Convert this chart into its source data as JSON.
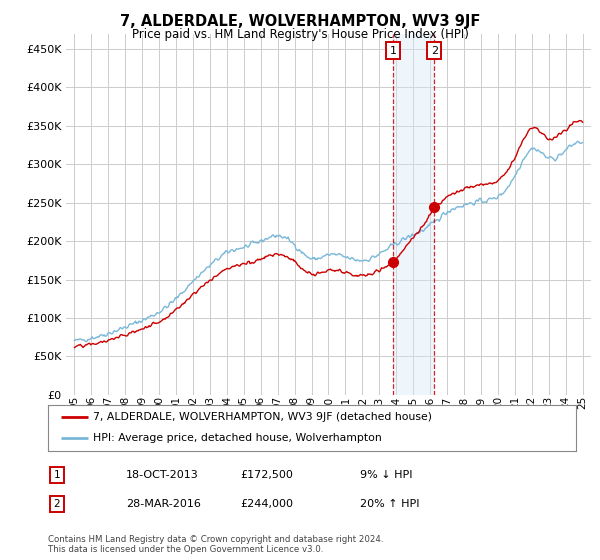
{
  "title": "7, ALDERDALE, WOLVERHAMPTON, WV3 9JF",
  "subtitle": "Price paid vs. HM Land Registry's House Price Index (HPI)",
  "legend_line1": "7, ALDERDALE, WOLVERHAMPTON, WV3 9JF (detached house)",
  "legend_line2": "HPI: Average price, detached house, Wolverhampton",
  "footnote": "Contains HM Land Registry data © Crown copyright and database right 2024.\nThis data is licensed under the Open Government Licence v3.0.",
  "transaction1_label": "1",
  "transaction1_date": "18-OCT-2013",
  "transaction1_price": "£172,500",
  "transaction1_hpi": "9% ↓ HPI",
  "transaction2_label": "2",
  "transaction2_date": "28-MAR-2016",
  "transaction2_price": "£244,000",
  "transaction2_hpi": "20% ↑ HPI",
  "hpi_color": "#7ab8d9",
  "price_color": "#cc0000",
  "background_color": "#ffffff",
  "grid_color": "#cccccc",
  "ylim": [
    0,
    470000
  ],
  "yticks": [
    0,
    50000,
    100000,
    150000,
    200000,
    250000,
    300000,
    350000,
    400000,
    450000
  ],
  "xlim_start": 1994.5,
  "xlim_end": 2025.5,
  "transaction1_x": 2013.8,
  "transaction2_x": 2016.25,
  "transaction1_y": 172500,
  "transaction2_y": 244000,
  "shade_color": "#d6eaf8",
  "x_tick_years": [
    1995,
    1996,
    1997,
    1998,
    1999,
    2000,
    2001,
    2002,
    2003,
    2004,
    2005,
    2006,
    2007,
    2008,
    2009,
    2010,
    2011,
    2012,
    2013,
    2014,
    2015,
    2016,
    2017,
    2018,
    2019,
    2020,
    2021,
    2022,
    2023,
    2024,
    2025
  ],
  "x_tick_labels": [
    "95",
    "96",
    "97",
    "98",
    "99",
    "00",
    "01",
    "02",
    "03",
    "04",
    "05",
    "06",
    "07",
    "08",
    "09",
    "10",
    "11",
    "12",
    "13",
    "14",
    "15",
    "16",
    "17",
    "18",
    "19",
    "20",
    "21",
    "22",
    "23",
    "24",
    "25"
  ]
}
